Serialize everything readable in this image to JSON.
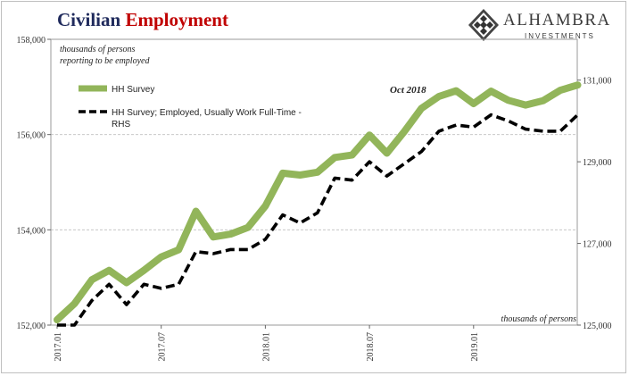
{
  "title": {
    "part1": "Civilian ",
    "part2": "Employment"
  },
  "logo": {
    "name": "ALHAMBRA",
    "sub": "INVESTMENTS",
    "icon": "diamond-lattice-icon"
  },
  "colors": {
    "hh_survey": "#92b55a",
    "fulltime": "#000000",
    "title_dark": "#1f2a5c",
    "title_red": "#c00000",
    "grid": "#bfbfbf"
  },
  "chart_data": {
    "type": "line",
    "left_axis_note": [
      "thousands of persons",
      "reporting to be employed"
    ],
    "right_axis_note": "thousands of persons",
    "annotation": "Oct 2018",
    "x_tick_labels": [
      "2017.01",
      "2017.07",
      "2018.01",
      "2018.07",
      "2019.01"
    ],
    "x": [
      "2017.01",
      "2017.02",
      "2017.03",
      "2017.04",
      "2017.05",
      "2017.06",
      "2017.07",
      "2017.08",
      "2017.09",
      "2017.10",
      "2017.11",
      "2017.12",
      "2018.01",
      "2018.02",
      "2018.03",
      "2018.04",
      "2018.05",
      "2018.06",
      "2018.07",
      "2018.08",
      "2018.09",
      "2018.10",
      "2018.11",
      "2018.12",
      "2019.01",
      "2019.02",
      "2019.03",
      "2019.04",
      "2019.05",
      "2019.06",
      "2019.07"
    ],
    "ylim_left": [
      152000,
      158000
    ],
    "ylim_right": [
      125000,
      132000
    ],
    "left_ticks": [
      "152,000",
      "154,000",
      "156,000",
      "158,000"
    ],
    "right_ticks": [
      "125,000",
      "127,000",
      "129,000",
      "131,000"
    ],
    "grid": true,
    "series": [
      {
        "name": "HH Survey",
        "axis": "left",
        "style": "solid",
        "values": [
          152110,
          152450,
          152950,
          153150,
          152890,
          153150,
          153430,
          153580,
          154390,
          153850,
          153910,
          154050,
          154500,
          155190,
          155150,
          155210,
          155520,
          155570,
          155990,
          155610,
          156060,
          156550,
          156800,
          156920,
          156650,
          156910,
          156720,
          156620,
          156710,
          156930,
          157040
        ]
      },
      {
        "name": "HH Survey; Employed, Usually Work Full-Time - RHS",
        "axis": "right",
        "style": "dashed",
        "values": [
          124800,
          125000,
          125600,
          126000,
          125500,
          126000,
          125900,
          126000,
          126800,
          126750,
          126850,
          126850,
          127100,
          127700,
          127500,
          127750,
          128600,
          128550,
          129000,
          128650,
          128950,
          129250,
          129750,
          129900,
          129850,
          130150,
          130000,
          129800,
          129750,
          129750,
          130150
        ]
      }
    ]
  }
}
